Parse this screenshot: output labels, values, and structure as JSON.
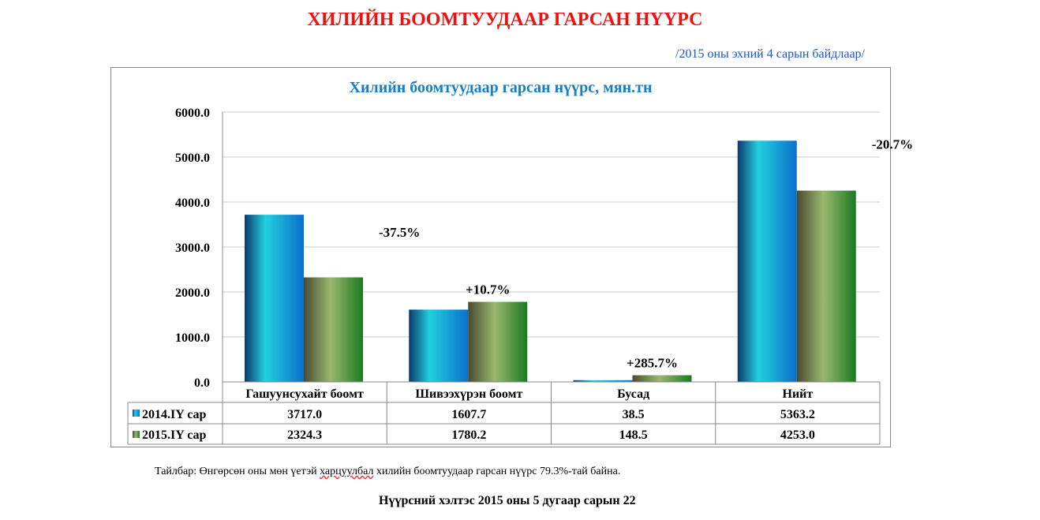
{
  "title": "ХИЛИЙН БООМТУУДААР ГАРСАН НҮҮРС",
  "subtitle": "/2015 оны эхний 4 сарын байдлаар/",
  "note": {
    "prefix": "Тайлбар: Өнгөрсөн оны мөн үетэй ",
    "underlined": "харцуулбал",
    "suffix": " хилийн боомтуудаар гарсан нүүрс 79.3%-тай байна."
  },
  "footer": "Нүүрсний хэлтэс 2015 оны 5 дугаар сарын 22",
  "chart_data": {
    "type": "bar",
    "title": "Хилийн боомтуудаар гарсан нүүрс, мян.тн",
    "categories": [
      "Гашуунсухайт боомт",
      "Шивээхүрэн боомт",
      "Бусад",
      "Нийт"
    ],
    "series": [
      {
        "name": "2014.IY сар",
        "values": [
          3717.0,
          1607.7,
          38.5,
          5363.2
        ],
        "color": "#1fb8d8"
      },
      {
        "name": "2015.IY сар",
        "values": [
          2324.3,
          1780.2,
          148.5,
          4253.0
        ],
        "color": "#6a9a40"
      }
    ],
    "annotations": [
      "-37.5%",
      "+10.7%",
      "+285.7%",
      "-20.7%"
    ],
    "ylim": [
      0,
      6000
    ],
    "yticks": [
      "0.0",
      "1000.0",
      "2000.0",
      "3000.0",
      "4000.0",
      "5000.0",
      "6000.0"
    ],
    "grid": true,
    "legend": "data-table"
  }
}
